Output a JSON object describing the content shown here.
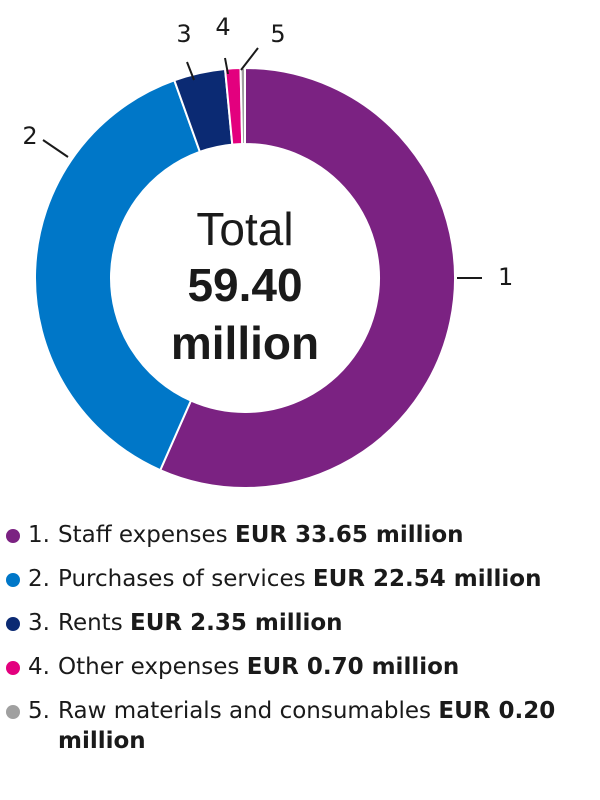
{
  "chart_data": {
    "type": "pie",
    "style": "donut",
    "center": {
      "line1": "Total",
      "line2": "59.40",
      "line3": "million"
    },
    "slices": [
      {
        "label": "1",
        "value": 33.65,
        "color": "#7b2282"
      },
      {
        "label": "2",
        "value": 22.54,
        "color": "#0077c8"
      },
      {
        "label": "3",
        "value": 2.35,
        "color": "#0b2a73"
      },
      {
        "label": "4",
        "value": 0.7,
        "color": "#e3007e"
      },
      {
        "label": "5",
        "value": 0.2,
        "color": "#a0a0a0"
      }
    ]
  },
  "legend": {
    "items": [
      {
        "num": "1.",
        "text": "Staff expenses ",
        "amount": "EUR 33.65 million",
        "color": "#7b2282"
      },
      {
        "num": "2.",
        "text": "Purchases of services ",
        "amount": "EUR 22.54 million",
        "color": "#0077c8"
      },
      {
        "num": "3.",
        "text": "Rents ",
        "amount": "EUR 2.35 million",
        "color": "#0b2a73"
      },
      {
        "num": "4.",
        "text": "Other expenses ",
        "amount": "EUR 0.70 million",
        "color": "#e3007e"
      },
      {
        "num": "5.",
        "text": "Raw materials and consumables ",
        "amount": "EUR 0.20 million",
        "color": "#a0a0a0"
      }
    ]
  }
}
